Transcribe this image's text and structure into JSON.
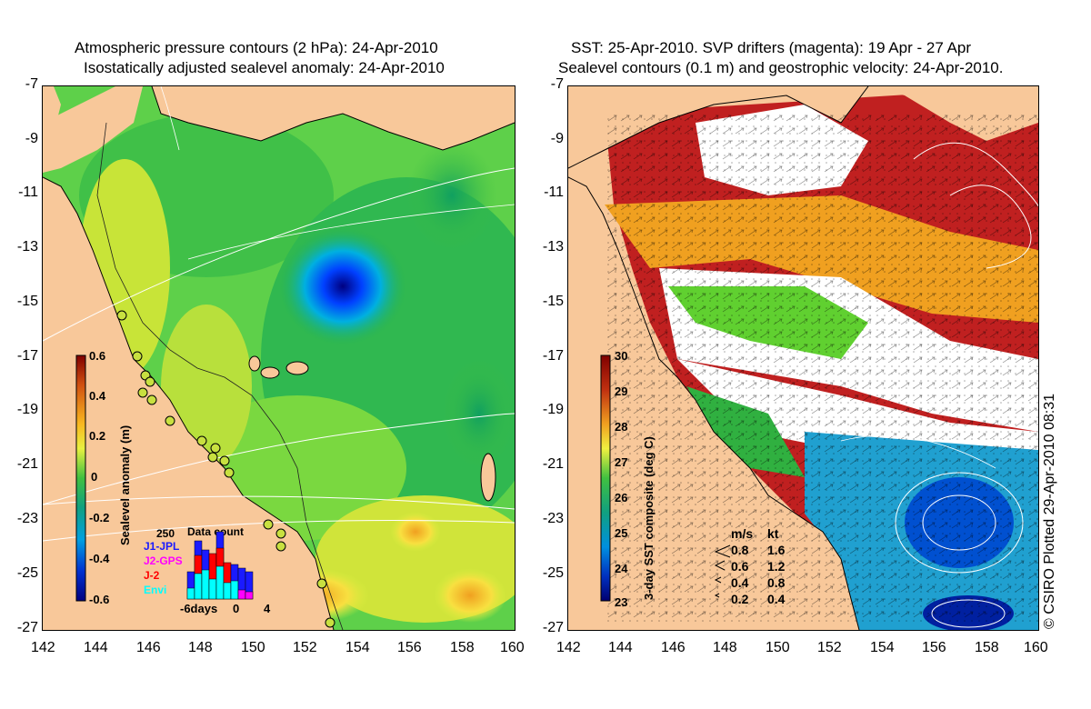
{
  "left_panel": {
    "title_line1": "Atmospheric pressure contours (2 hPa): 24-Apr-2010",
    "title_line2": "Isostatically adjusted sealevel anomaly: 24-Apr-2010",
    "colorbar_label": "Sealevel anomaly (m)",
    "colorbar_ticks": [
      "0.6",
      "0.4",
      "0.2",
      "0",
      "-0.2",
      "-0.4",
      "-0.6"
    ],
    "data_count": {
      "title": "Data count",
      "max_label": "250",
      "legend": [
        {
          "name": "J1-JPL",
          "color": "#1a1aff"
        },
        {
          "name": "J2-GPS",
          "color": "#ff00ff"
        },
        {
          "name": "J-2",
          "color": "#ff0000"
        },
        {
          "name": "Envi",
          "color": "#00ffff"
        }
      ],
      "xlabels": [
        "-6days",
        "0",
        "4"
      ]
    }
  },
  "right_panel": {
    "title_line1": "SST: 25-Apr-2010. SVP drifters (magenta): 19 Apr - 27 Apr",
    "title_line2": "Sealevel contours (0.1 m) and geostrophic velocity: 24-Apr-2010.",
    "colorbar_label": "3-day SST composite (deg C)",
    "colorbar_ticks": [
      "30",
      "29",
      "28",
      "27",
      "26",
      "25",
      "24",
      "23"
    ],
    "velocity_legend": {
      "header_ms": "m/s",
      "header_kt": "kt",
      "rows": [
        {
          "ms": "0.8",
          "kt": "1.6"
        },
        {
          "ms": "0.6",
          "kt": "1.2"
        },
        {
          "ms": "0.4",
          "kt": "0.8"
        },
        {
          "ms": "0.2",
          "kt": "0.4"
        }
      ]
    },
    "credit": "© CSIRO Plotted 29-Apr-2010 08:31"
  },
  "axes": {
    "x_ticks": [
      "142",
      "144",
      "146",
      "148",
      "150",
      "152",
      "154",
      "156",
      "158",
      "160"
    ],
    "y_ticks": [
      "-7",
      "-9",
      "-11",
      "-13",
      "-15",
      "-17",
      "-19",
      "-21",
      "-23",
      "-25",
      "-27"
    ]
  },
  "colors": {
    "land": "#f8c89a",
    "sla_low": "#000080",
    "sla_high": "#800000",
    "sst_warm": "#a00000",
    "cloud": "#ffffff"
  }
}
